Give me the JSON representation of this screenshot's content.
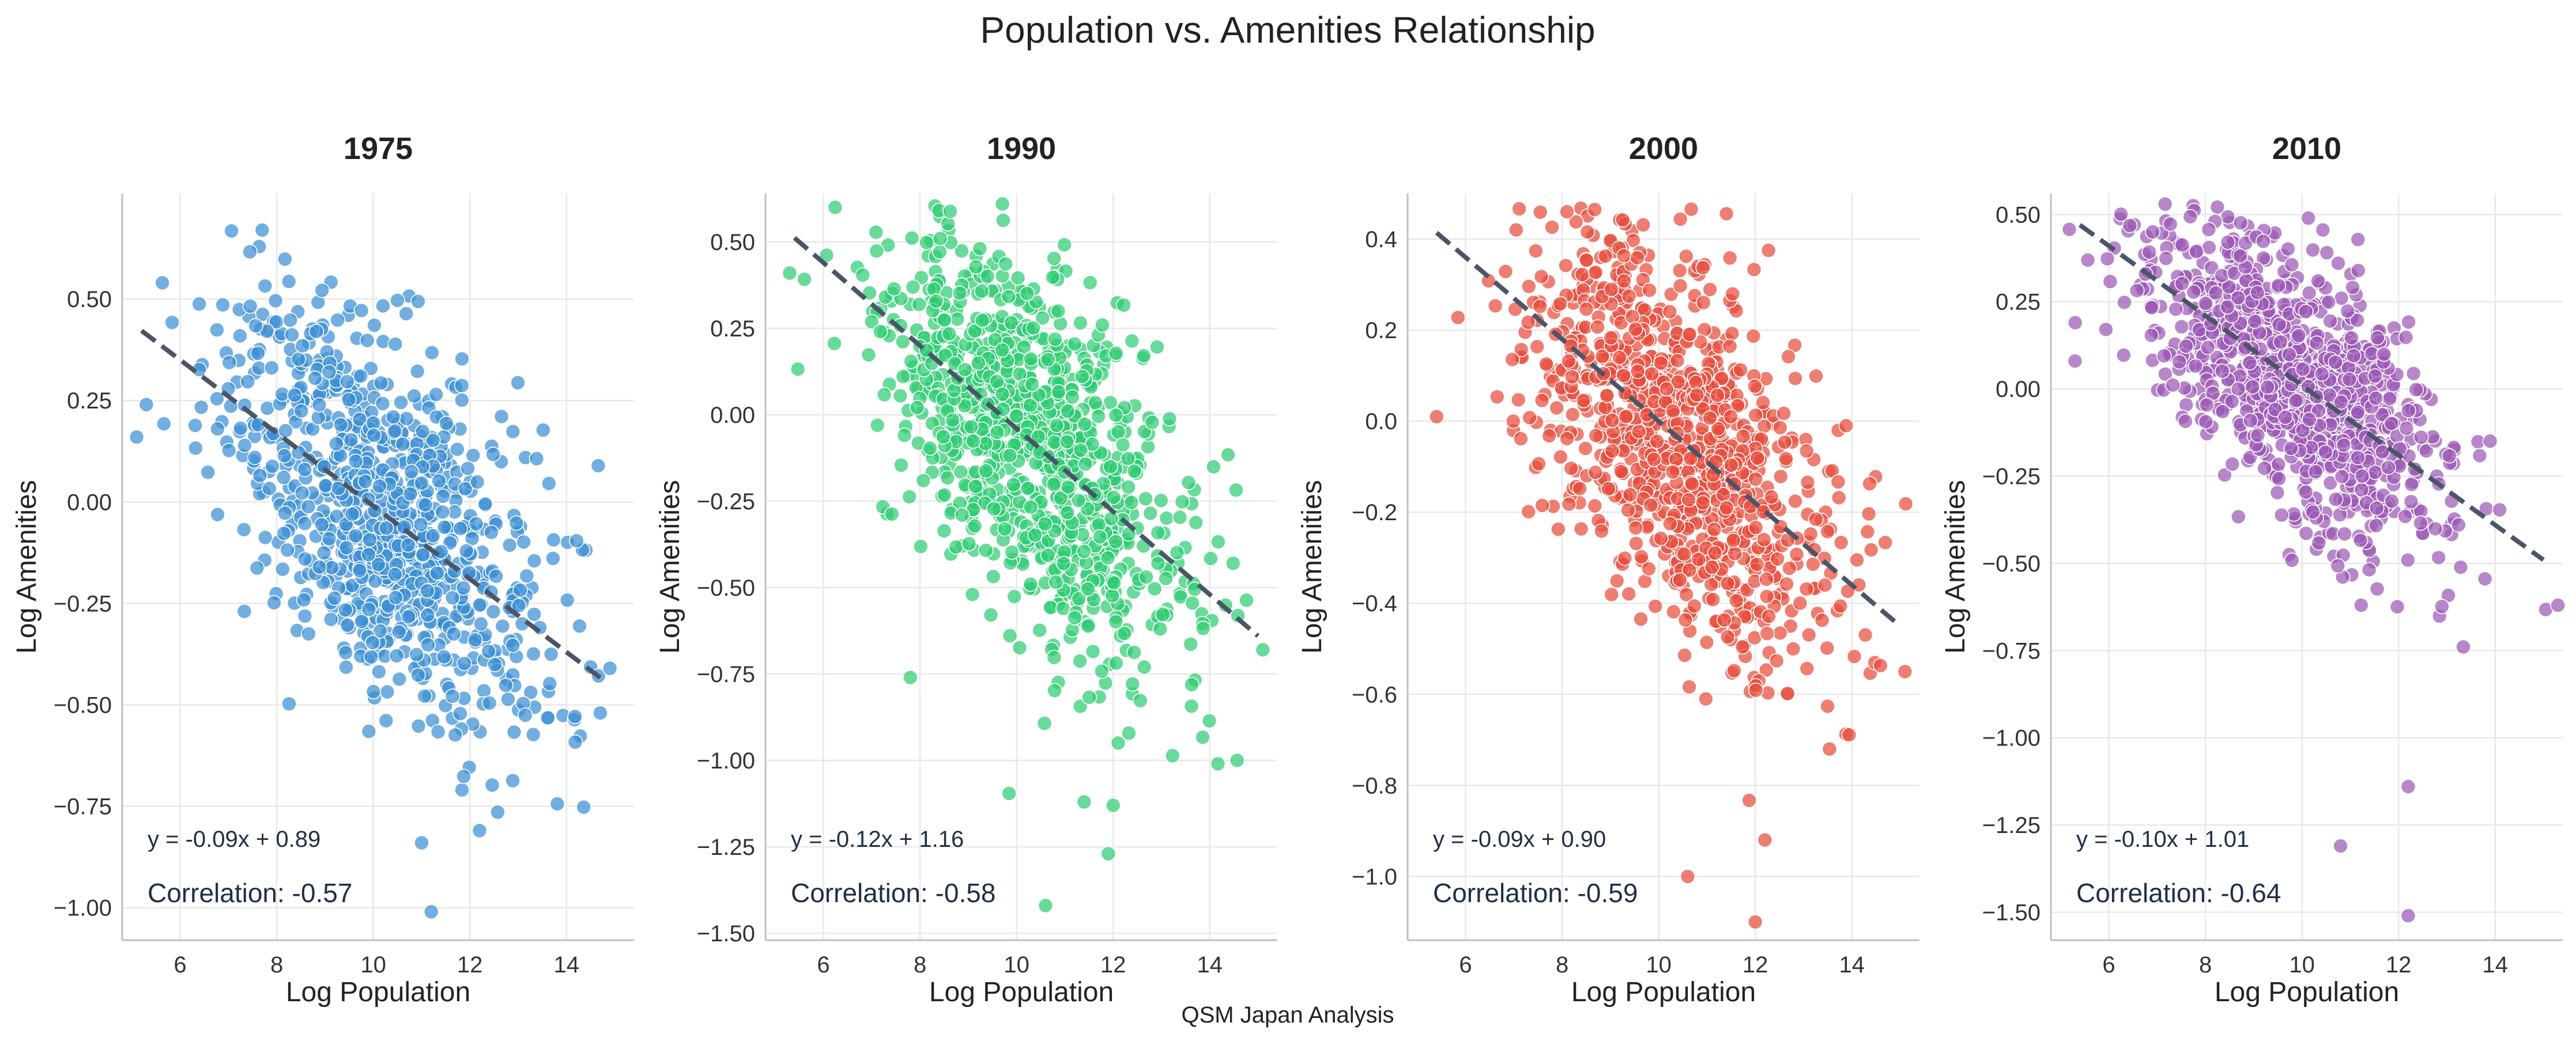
{
  "figure": {
    "title": "Population vs. Amenities Relationship",
    "footer": "QSM Japan Analysis"
  },
  "chart_data": [
    {
      "type": "scatter",
      "title": "1975",
      "xlabel": "Log Population",
      "ylabel": "Log Amenities",
      "xlim": [
        4.8,
        15.4
      ],
      "ylim": [
        -1.08,
        0.76
      ],
      "xticks": [
        6,
        8,
        10,
        12,
        14
      ],
      "yticks": [
        -1.0,
        -0.75,
        -0.5,
        -0.25,
        0.0,
        0.25,
        0.5
      ],
      "ytick_labels": [
        "−1.00",
        "−0.75",
        "−0.50",
        "−0.25",
        "0.00",
        "0.25",
        "0.50"
      ],
      "color": "#3b8fd4",
      "grid": true,
      "n_points": 900,
      "x_mean": 10.2,
      "x_sd": 1.65,
      "slope": -0.09,
      "intercept": 0.89,
      "correlation": -0.57,
      "equation_text": "y = -0.09x + 0.89",
      "correlation_text": "Correlation: -0.57",
      "fit_line": {
        "x": [
          5.2,
          14.8
        ]
      },
      "notable_points": [
        [
          5.1,
          0.16
        ],
        [
          5.3,
          0.24
        ],
        [
          7.7,
          0.67
        ],
        [
          11.2,
          -1.01
        ],
        [
          11.0,
          -0.84
        ],
        [
          12.2,
          -0.81
        ],
        [
          14.9,
          -0.41
        ],
        [
          14.7,
          -0.52
        ]
      ]
    },
    {
      "type": "scatter",
      "title": "1990",
      "xlabel": "Log Population",
      "ylabel": "Log Amenities",
      "xlim": [
        4.8,
        15.4
      ],
      "ylim": [
        -1.52,
        0.64
      ],
      "xticks": [
        6,
        8,
        10,
        12,
        14
      ],
      "yticks": [
        -1.5,
        -1.25,
        -1.0,
        -0.75,
        -0.5,
        -0.25,
        0.0,
        0.25,
        0.5
      ],
      "ytick_labels": [
        "−1.50",
        "−1.25",
        "−1.00",
        "−0.75",
        "−0.50",
        "−0.25",
        "0.00",
        "0.25",
        "0.50"
      ],
      "color": "#2ecc71",
      "grid": true,
      "n_points": 1000,
      "x_mean": 10.3,
      "x_sd": 1.55,
      "slope": -0.12,
      "intercept": 1.16,
      "correlation": -0.58,
      "equation_text": "y = -0.12x + 1.16",
      "correlation_text": "Correlation: -0.58",
      "fit_line": {
        "x": [
          5.4,
          15.0
        ]
      },
      "notable_points": [
        [
          5.3,
          0.41
        ],
        [
          10.6,
          -1.42
        ],
        [
          11.9,
          -1.27
        ],
        [
          11.4,
          -1.12
        ],
        [
          12.0,
          -1.13
        ],
        [
          15.1,
          -0.68
        ],
        [
          7.8,
          -0.76
        ]
      ]
    },
    {
      "type": "scatter",
      "title": "2000",
      "xlabel": "Log Population",
      "ylabel": "Log Amenities",
      "xlim": [
        4.8,
        15.4
      ],
      "ylim": [
        -1.14,
        0.5
      ],
      "xticks": [
        6,
        8,
        10,
        12,
        14
      ],
      "yticks": [
        -1.0,
        -0.8,
        -0.6,
        -0.4,
        -0.2,
        0.0,
        0.2,
        0.4
      ],
      "ytick_labels": [
        "−1.0",
        "−0.8",
        "−0.6",
        "−0.4",
        "−0.2",
        "0.0",
        "0.2",
        "0.4"
      ],
      "color": "#e74c3c",
      "grid": true,
      "n_points": 1000,
      "x_mean": 10.4,
      "x_sd": 1.6,
      "slope": -0.09,
      "intercept": 0.9,
      "correlation": -0.59,
      "equation_text": "y = -0.09x + 0.90",
      "correlation_text": "Correlation: -0.59",
      "fit_line": {
        "x": [
          5.4,
          15.0
        ]
      },
      "notable_points": [
        [
          5.4,
          0.01
        ],
        [
          8.1,
          0.46
        ],
        [
          12.0,
          -1.1
        ],
        [
          10.6,
          -1.0
        ],
        [
          12.2,
          -0.92
        ],
        [
          15.1,
          -0.55
        ]
      ]
    },
    {
      "type": "scatter",
      "title": "2010",
      "xlabel": "Log Population",
      "ylabel": "Log Amenities",
      "xlim": [
        4.8,
        15.4
      ],
      "ylim": [
        -1.58,
        0.56
      ],
      "xticks": [
        6,
        8,
        10,
        12,
        14
      ],
      "yticks": [
        -1.5,
        -1.25,
        -1.0,
        -0.75,
        -0.5,
        -0.25,
        0.0,
        0.25,
        0.5
      ],
      "ytick_labels": [
        "−1.50",
        "−1.25",
        "−1.00",
        "−0.75",
        "−0.50",
        "−0.25",
        "0.00",
        "0.25",
        "0.50"
      ],
      "color": "#9b59b6",
      "grid": true,
      "n_points": 1000,
      "x_mean": 9.9,
      "x_sd": 1.6,
      "slope": -0.1,
      "intercept": 1.01,
      "correlation": -0.64,
      "equation_text": "y = -0.10x + 1.01",
      "correlation_text": "Correlation: -0.64",
      "fit_line": {
        "x": [
          5.4,
          15.0
        ]
      },
      "notable_points": [
        [
          5.3,
          0.08
        ],
        [
          12.2,
          -1.51
        ],
        [
          12.2,
          -1.14
        ],
        [
          10.8,
          -1.31
        ],
        [
          15.3,
          -0.62
        ]
      ]
    }
  ]
}
